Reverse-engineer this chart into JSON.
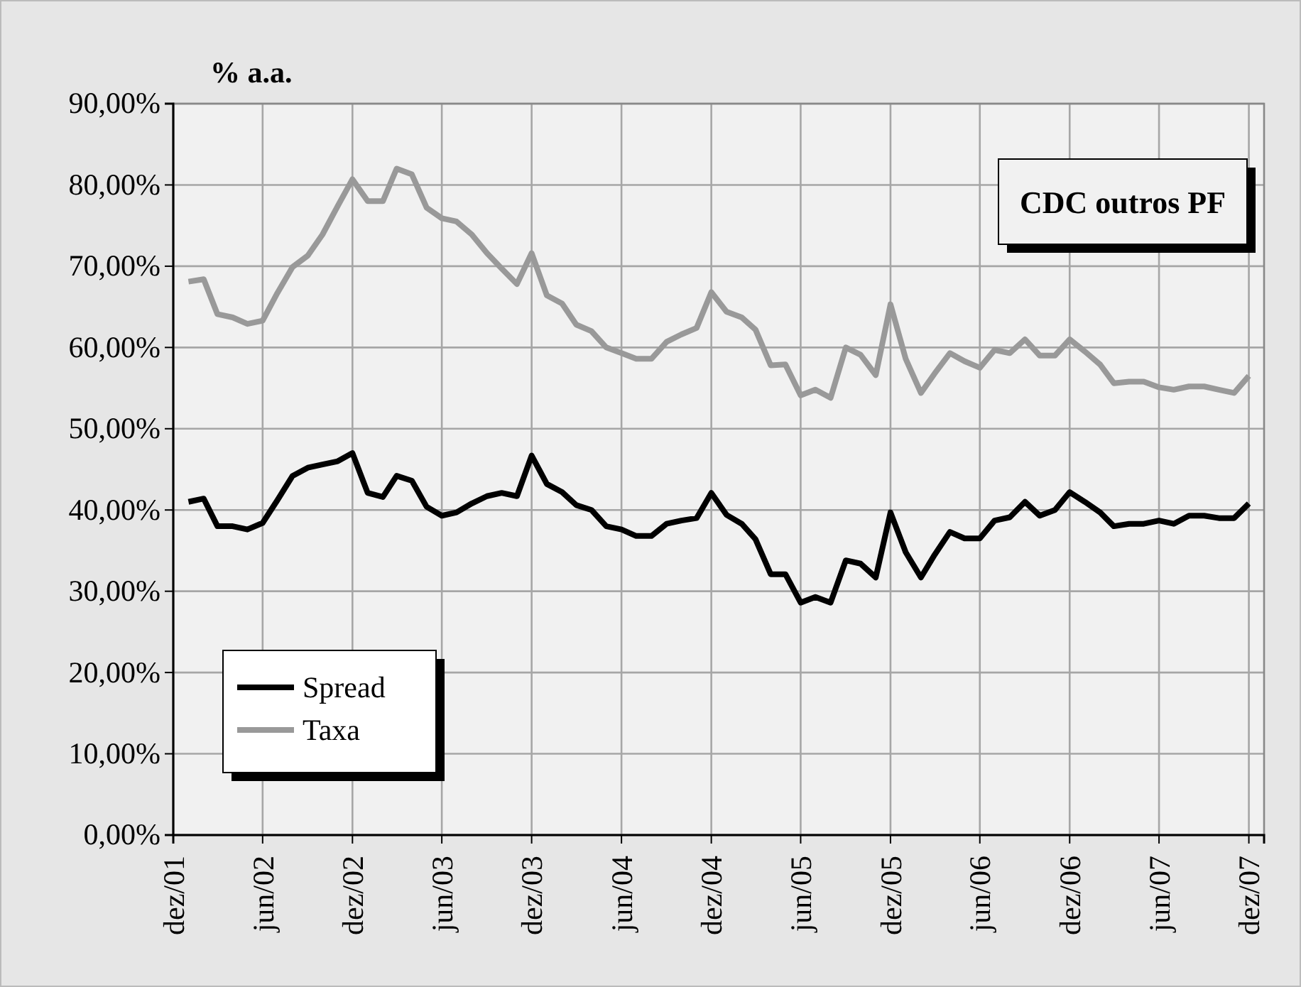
{
  "chart_data": {
    "type": "line",
    "title": "CDC outros PF",
    "ylabel": "% a.a.",
    "grid": true,
    "legend": "bottom left",
    "x": [
      "2002-01",
      "2002-02",
      "2002-03",
      "2002-04",
      "2002-05",
      "2002-06",
      "2002-07",
      "2002-08",
      "2002-09",
      "2002-10",
      "2002-11",
      "2002-12",
      "2003-01",
      "2003-02",
      "2003-03",
      "2003-04",
      "2003-05",
      "2003-06",
      "2003-07",
      "2003-08",
      "2003-09",
      "2003-10",
      "2003-11",
      "2003-12",
      "2004-01",
      "2004-02",
      "2004-03",
      "2004-04",
      "2004-05",
      "2004-06",
      "2004-07",
      "2004-08",
      "2004-09",
      "2004-10",
      "2004-11",
      "2004-12",
      "2005-01",
      "2005-02",
      "2005-03",
      "2005-04",
      "2005-05",
      "2005-06",
      "2005-07",
      "2005-08",
      "2005-09",
      "2005-10",
      "2005-11",
      "2005-12",
      "2006-01",
      "2006-02",
      "2006-03",
      "2006-04",
      "2006-05",
      "2006-06",
      "2006-07",
      "2006-08",
      "2006-09",
      "2006-10",
      "2006-11",
      "2006-12",
      "2007-01",
      "2007-02",
      "2007-03",
      "2007-04",
      "2007-05",
      "2007-06",
      "2007-07",
      "2007-08",
      "2007-09",
      "2007-10",
      "2007-11",
      "2007-12"
    ],
    "series": [
      {
        "name": "Spread",
        "color": "#000000",
        "values": [
          41.0,
          41.4,
          38.0,
          38.0,
          37.6,
          38.4,
          41.2,
          44.2,
          45.2,
          45.6,
          46.0,
          47.0,
          42.1,
          41.6,
          44.2,
          43.6,
          40.4,
          39.3,
          39.7,
          40.8,
          41.7,
          42.1,
          41.7,
          46.7,
          43.2,
          42.2,
          40.6,
          40.0,
          38.0,
          37.6,
          36.8,
          36.8,
          38.3,
          38.7,
          39.0,
          42.1,
          39.4,
          38.3,
          36.4,
          32.1,
          32.1,
          28.6,
          29.3,
          28.6,
          33.8,
          33.4,
          31.7,
          39.7,
          34.8,
          31.7,
          34.5,
          37.3,
          36.5,
          36.5,
          38.7,
          39.1,
          41.0,
          39.3,
          40.0,
          42.2,
          41.0,
          39.7,
          38.0,
          38.3,
          38.3,
          38.7,
          38.3,
          39.3,
          39.3,
          39.0,
          39.0,
          40.8
        ]
      },
      {
        "name": "Taxa",
        "color": "#999999",
        "values": [
          68.1,
          68.4,
          64.1,
          63.7,
          62.9,
          63.3,
          66.7,
          69.9,
          71.3,
          73.9,
          77.4,
          80.7,
          78.0,
          78.0,
          82.0,
          81.3,
          77.2,
          75.9,
          75.5,
          73.9,
          71.6,
          69.7,
          67.8,
          71.6,
          66.4,
          65.4,
          62.8,
          62.0,
          60.0,
          59.3,
          58.6,
          58.6,
          60.7,
          61.6,
          62.4,
          66.8,
          64.4,
          63.7,
          62.2,
          57.8,
          57.9,
          54.1,
          54.8,
          53.8,
          60.0,
          59.1,
          56.6,
          65.3,
          58.6,
          54.4,
          56.8,
          59.3,
          58.3,
          57.5,
          59.7,
          59.3,
          61.0,
          59.0,
          59.0,
          61.0,
          59.5,
          57.9,
          55.6,
          55.8,
          55.8,
          55.1,
          54.8,
          55.2,
          55.2,
          54.8,
          54.4,
          56.5
        ]
      }
    ],
    "xlim": [
      "2001-12",
      "2008-01"
    ],
    "xticks": [
      {
        "value": "2001-12",
        "label": "dez/01"
      },
      {
        "value": "2002-06",
        "label": "jun/02"
      },
      {
        "value": "2002-12",
        "label": "dez/02"
      },
      {
        "value": "2003-06",
        "label": "jun/03"
      },
      {
        "value": "2003-12",
        "label": "dez/03"
      },
      {
        "value": "2004-06",
        "label": "jun/04"
      },
      {
        "value": "2004-12",
        "label": "dez/04"
      },
      {
        "value": "2005-06",
        "label": "jun/05"
      },
      {
        "value": "2005-12",
        "label": "dez/05"
      },
      {
        "value": "2006-06",
        "label": "jun/06"
      },
      {
        "value": "2006-12",
        "label": "dez/06"
      },
      {
        "value": "2007-06",
        "label": "jun/07"
      },
      {
        "value": "2007-12",
        "label": "dez/07"
      }
    ],
    "ylim": [
      0,
      90
    ],
    "yticks": [
      {
        "value": 0,
        "label": "0,00%"
      },
      {
        "value": 10,
        "label": "10,00%"
      },
      {
        "value": 20,
        "label": "20,00%"
      },
      {
        "value": 30,
        "label": "30,00%"
      },
      {
        "value": 40,
        "label": "40,00%"
      },
      {
        "value": 50,
        "label": "50,00%"
      },
      {
        "value": 60,
        "label": "60,00%"
      },
      {
        "value": 70,
        "label": "70,00%"
      },
      {
        "value": 80,
        "label": "80,00%"
      },
      {
        "value": 90,
        "label": "90,00%"
      }
    ]
  }
}
